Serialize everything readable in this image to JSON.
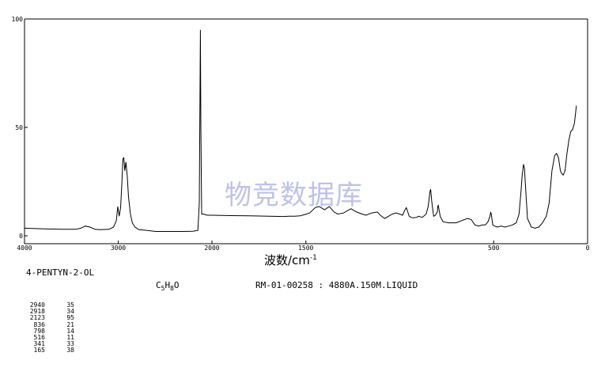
{
  "watermark": "物竞数据库",
  "compound": {
    "name": "4-PENTYN-2-OL",
    "formula_prefix": "C",
    "formula_c": "5",
    "formula_h_label": "H",
    "formula_h": "8",
    "formula_o": "O"
  },
  "record": "RM-01-00258 : 4880A.150M.LIQUID",
  "chart_data": {
    "type": "line",
    "xlabel": "波数/cm",
    "xlabel_superscript": "-1",
    "ylabel": "",
    "title": "",
    "xlim": [
      4000,
      0
    ],
    "ylim": [
      0,
      100
    ],
    "x_ticks": [
      4000,
      3000,
      2000,
      1500,
      500,
      0
    ],
    "x_tick_labels": [
      "4000",
      "3000",
      "2000",
      "1500",
      "500",
      "0"
    ],
    "y_ticks": [
      0,
      50,
      100
    ],
    "y_tick_labels": [
      "0",
      "50",
      "100"
    ],
    "grid": false,
    "series": [
      {
        "x": [
          4000,
          3800,
          3600,
          3450,
          3400,
          3350,
          3300,
          3250,
          3200,
          3100,
          3050,
          3020,
          3005,
          2990,
          2975,
          2960,
          2950,
          2940,
          2930,
          2918,
          2905,
          2890,
          2870,
          2850,
          2820,
          2780,
          2700,
          2600,
          2500,
          2400,
          2300,
          2200,
          2150,
          2135,
          2128,
          2123,
          2118,
          2110,
          2100,
          2090,
          2050,
          2000,
          1900,
          1800,
          1700,
          1620,
          1590,
          1560,
          1530,
          1505,
          1480,
          1450,
          1430,
          1400,
          1375,
          1350,
          1330,
          1300,
          1260,
          1230,
          1200,
          1180,
          1150,
          1120,
          1100,
          1080,
          1060,
          1040,
          1020,
          1000,
          985,
          975,
          965,
          950,
          940,
          930,
          910,
          900,
          880,
          860,
          850,
          845,
          840,
          836,
          830,
          820,
          810,
          800,
          798,
          795,
          785,
          770,
          740,
          700,
          670,
          640,
          620,
          600,
          580,
          560,
          545,
          530,
          520,
          516,
          512,
          505,
          495,
          480,
          460,
          440,
          420,
          400,
          380,
          365,
          355,
          348,
          341,
          336,
          330,
          320,
          300,
          280,
          260,
          240,
          220,
          205,
          190,
          175,
          165,
          155,
          145,
          140,
          130,
          120,
          110,
          100,
          90,
          80,
          70,
          60
        ],
        "y": [
          3.5,
          3.2,
          3.0,
          3.0,
          3.5,
          4.5,
          4.0,
          3.0,
          2.8,
          3.0,
          4.0,
          7.0,
          13.5,
          9.0,
          13.0,
          25.0,
          35.5,
          36.0,
          30.0,
          34.0,
          28.0,
          18.0,
          10.0,
          6.0,
          4.0,
          2.8,
          2.5,
          2.0,
          2.0,
          2.0,
          2.0,
          2.1,
          2.5,
          15.0,
          60.0,
          95.0,
          50.0,
          10.0,
          10.0,
          10.0,
          9.5,
          9.5,
          9.3,
          9.2,
          9.0,
          8.9,
          9.0,
          9.0,
          9.2,
          9.8,
          10.5,
          13.0,
          13.5,
          12.0,
          13.5,
          11.0,
          10.0,
          10.5,
          12.5,
          11.0,
          10.0,
          9.5,
          10.5,
          11.0,
          9.2,
          8.0,
          9.0,
          10.0,
          10.5,
          10.0,
          9.5,
          11.5,
          13.0,
          9.0,
          8.5,
          8.3,
          8.5,
          9.0,
          8.5,
          10.0,
          13.0,
          16.0,
          20.0,
          21.5,
          16.0,
          9.0,
          9.5,
          11.0,
          13.5,
          14.0,
          9.0,
          6.5,
          6.0,
          6.0,
          7.0,
          8.0,
          7.5,
          5.0,
          4.5,
          5.0,
          5.0,
          6.5,
          9.0,
          11.0,
          9.5,
          5.0,
          4.5,
          4.0,
          4.5,
          4.0,
          4.5,
          5.0,
          6.0,
          10.0,
          20.0,
          28.0,
          33.0,
          31.0,
          22.0,
          8.0,
          4.0,
          3.5,
          4.0,
          6.0,
          9.0,
          15.0,
          30.0,
          37.0,
          38.0,
          36.0,
          30.0,
          29.0,
          28.0,
          30.0,
          38.0,
          44.0,
          48.0,
          49.0,
          52.0,
          60.0
        ]
      }
    ],
    "peak_table": [
      [
        "2940",
        "35"
      ],
      [
        "2918",
        "34"
      ],
      [
        "2123",
        "95"
      ],
      [
        "836",
        "21"
      ],
      [
        "798",
        "14"
      ],
      [
        "516",
        "11"
      ],
      [
        "341",
        "33"
      ],
      [
        "165",
        "38"
      ]
    ]
  }
}
